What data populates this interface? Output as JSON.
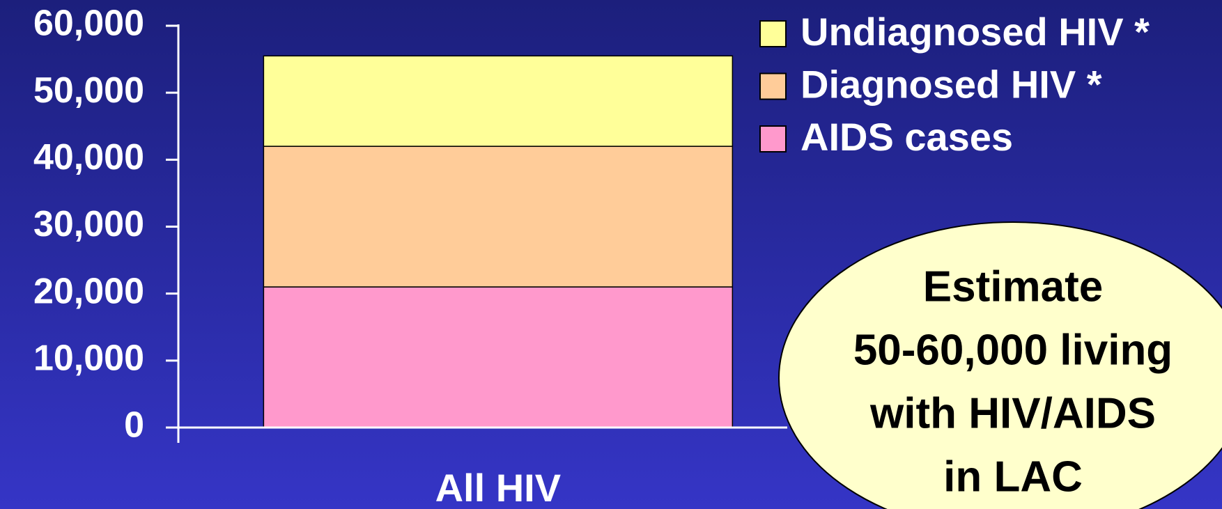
{
  "chart_data": {
    "type": "stacked_bar",
    "categories": [
      "All HIV"
    ],
    "series": [
      {
        "name": "AIDS cases",
        "color": "#ff99cc",
        "values": [
          21000
        ]
      },
      {
        "name": "Diagnosed HIV *",
        "color": "#ffcc99",
        "values": [
          21000
        ]
      },
      {
        "name": "Undiagnosed HIV *",
        "color": "#ffff99",
        "values": [
          13500
        ]
      }
    ],
    "ylim": [
      0,
      60000
    ],
    "yticks": [
      0,
      {
        "value": 10000,
        "label": "10,000"
      },
      {
        "value": 20000,
        "label": "20,000"
      },
      {
        "value": 30000,
        "label": "30,000"
      },
      {
        "value": 40000,
        "label": "40,000"
      },
      {
        "value": 50000,
        "label": "50,000"
      },
      {
        "value": 60000,
        "label": "60,000"
      }
    ],
    "legend": "top-right",
    "annotation": [
      "Estimate",
      "50-60,000 living",
      "with HIV/AIDS",
      "in LAC"
    ]
  }
}
